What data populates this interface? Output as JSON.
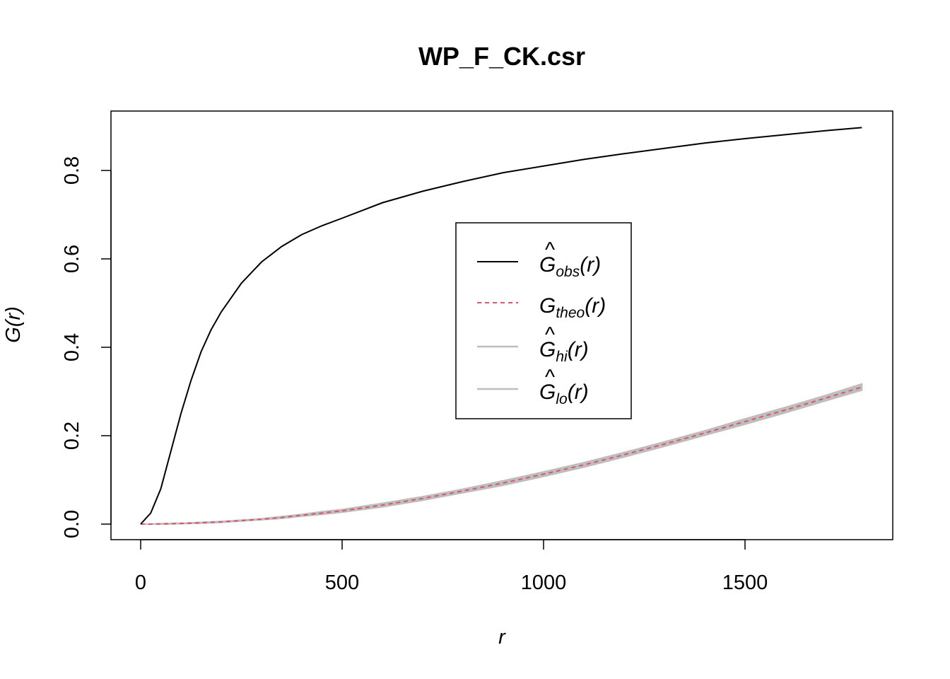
{
  "chart_data": {
    "type": "line",
    "title": "WP_F_CK.csr",
    "xlabel": "r",
    "ylabel": "G(r)",
    "xlim": [
      0,
      1790
    ],
    "ylim": [
      0,
      0.9
    ],
    "x_ticks": [
      "0",
      "500",
      "1000",
      "1500"
    ],
    "y_ticks": [
      "0.0",
      "0.2",
      "0.4",
      "0.6",
      "0.8"
    ],
    "x_tick_values": [
      0,
      500,
      1000,
      1500
    ],
    "y_tick_values": [
      0,
      0.2,
      0.4,
      0.6,
      0.8
    ],
    "legend_position": "center-right",
    "x": [
      0,
      25,
      50,
      75,
      100,
      125,
      150,
      175,
      200,
      250,
      300,
      350,
      400,
      450,
      500,
      600,
      700,
      800,
      900,
      1000,
      1100,
      1200,
      1300,
      1400,
      1500,
      1600,
      1700,
      1790
    ],
    "series": [
      {
        "name": "obs",
        "legend_base": "G",
        "legend_sub": "obs",
        "legend_hat": true,
        "color": "#000000",
        "style": "solid",
        "values": [
          0.0,
          0.025,
          0.08,
          0.165,
          0.25,
          0.325,
          0.39,
          0.44,
          0.48,
          0.545,
          0.593,
          0.628,
          0.655,
          0.675,
          0.692,
          0.727,
          0.753,
          0.775,
          0.795,
          0.81,
          0.825,
          0.838,
          0.85,
          0.862,
          0.872,
          0.881,
          0.89,
          0.897
        ]
      },
      {
        "name": "theo",
        "legend_base": "G",
        "legend_sub": "theo",
        "legend_hat": false,
        "color": "#df536b",
        "style": "dashed",
        "values": [
          0.0,
          0.0,
          0.0005,
          0.001,
          0.0015,
          0.002,
          0.003,
          0.004,
          0.005,
          0.008,
          0.011,
          0.015,
          0.02,
          0.025,
          0.03,
          0.043,
          0.058,
          0.075,
          0.093,
          0.113,
          0.134,
          0.157,
          0.181,
          0.206,
          0.232,
          0.258,
          0.285,
          0.31
        ]
      },
      {
        "name": "hi",
        "legend_base": "G",
        "legend_sub": "hi",
        "legend_hat": true,
        "color": "#bebebe",
        "style": "band",
        "values": [
          0.0,
          0.0,
          0.001,
          0.0015,
          0.002,
          0.003,
          0.004,
          0.005,
          0.006,
          0.009,
          0.012,
          0.017,
          0.022,
          0.028,
          0.033,
          0.047,
          0.062,
          0.079,
          0.098,
          0.118,
          0.139,
          0.162,
          0.186,
          0.211,
          0.238,
          0.264,
          0.291,
          0.317
        ]
      },
      {
        "name": "lo",
        "legend_base": "G",
        "legend_sub": "lo",
        "legend_hat": true,
        "color": "#bebebe",
        "style": "band",
        "values": [
          0.0,
          0.0,
          0.0,
          0.0005,
          0.001,
          0.0015,
          0.002,
          0.003,
          0.004,
          0.007,
          0.01,
          0.013,
          0.018,
          0.022,
          0.027,
          0.039,
          0.054,
          0.071,
          0.088,
          0.108,
          0.129,
          0.152,
          0.176,
          0.201,
          0.226,
          0.252,
          0.279,
          0.303
        ]
      }
    ]
  }
}
